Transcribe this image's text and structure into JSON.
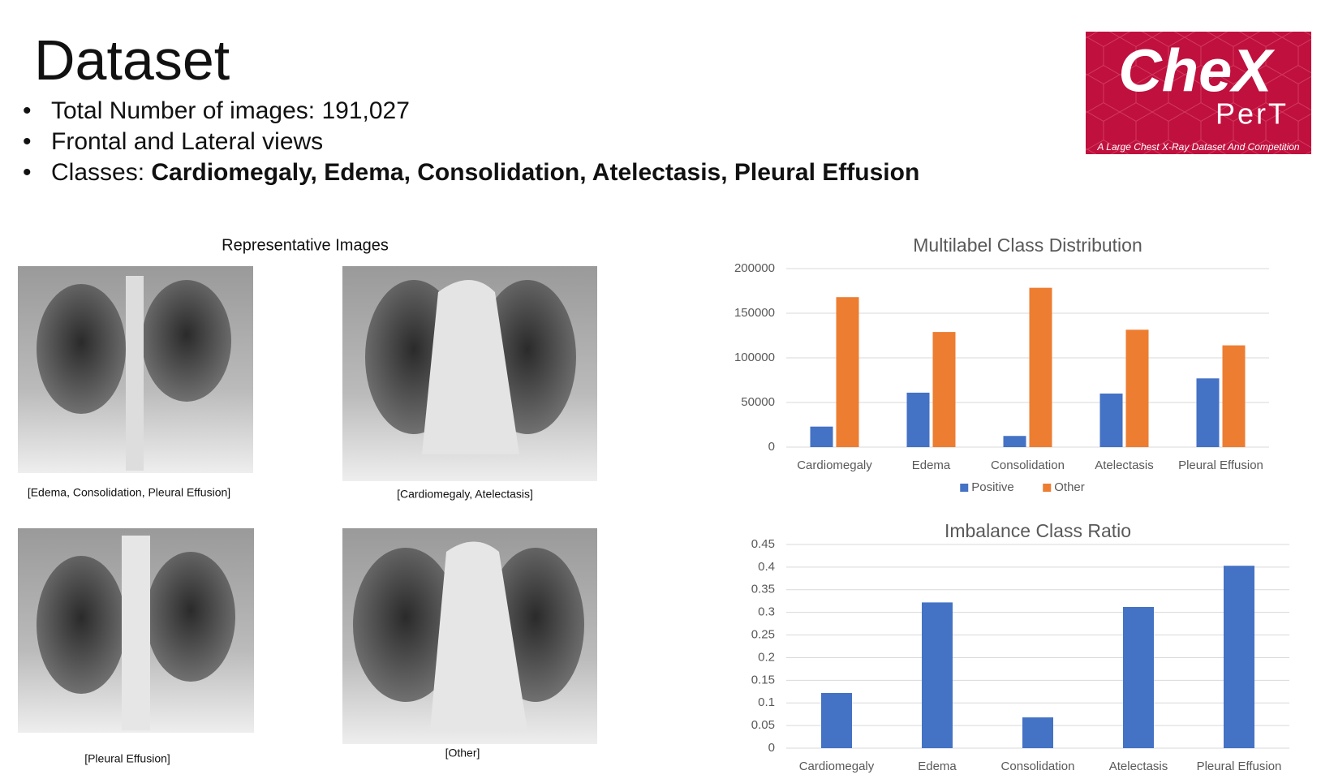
{
  "header": {
    "title": "Dataset"
  },
  "bullets": [
    "Total Number of images: 191,027",
    "Frontal and Lateral views",
    {
      "text": "Classes: ",
      "bold": "Cardiomegaly, Edema, Consolidation, Atelectasis,  Pleural Effusion"
    }
  ],
  "logo": {
    "line1": "CheX",
    "line2": "PerT",
    "tagline": "A Large Chest X-Ray Dataset And Competition"
  },
  "images": {
    "heading": "Representative Images",
    "captions": [
      "[Edema, Consolidation, Pleural Effusion]",
      "[Cardiomegaly, Atelectasis]",
      "[Pleural Effusion]",
      "[Other]"
    ]
  },
  "chart_data": [
    {
      "type": "bar",
      "title": "Multilabel Class Distribution",
      "categories": [
        "Cardiomegaly",
        "Edema",
        "Consolidation",
        "Atelectasis",
        "Pleural Effusion"
      ],
      "series": [
        {
          "name": "Positive",
          "color": "#4472c4",
          "values": [
            23000,
            61000,
            12500,
            60000,
            77000
          ]
        },
        {
          "name": "Other",
          "color": "#ed7d31",
          "values": [
            168000,
            129000,
            178500,
            131500,
            114000
          ]
        }
      ],
      "ylim": [
        0,
        200000
      ],
      "yticks": [
        0,
        50000,
        100000,
        150000,
        200000
      ],
      "grid": true,
      "legend": "bottom"
    },
    {
      "type": "bar",
      "title": "Imbalance Class Ratio",
      "categories": [
        "Cardiomegaly",
        "Edema",
        "Consolidation",
        "Atelectasis",
        "Pleural Effusion"
      ],
      "values": [
        0.122,
        0.322,
        0.068,
        0.312,
        0.403
      ],
      "color": "#4472c4",
      "ylim": [
        0,
        0.45
      ],
      "yticks": [
        0,
        0.05,
        0.1,
        0.15,
        0.2,
        0.25,
        0.3,
        0.35,
        0.4,
        0.45
      ],
      "grid": true
    }
  ]
}
